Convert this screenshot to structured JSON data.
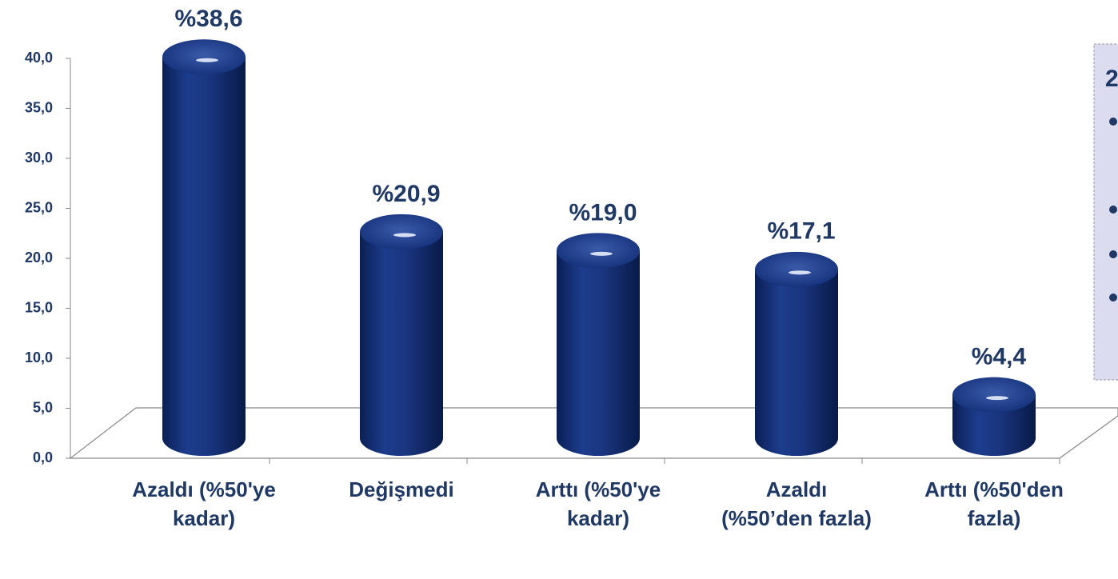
{
  "chart_data": {
    "type": "bar",
    "categories": [
      "Azaldı (%50'ye kadar)",
      "Değişmedi",
      "Arttı (%50'ye kadar)",
      "Azaldı (%50’den fazla)",
      "Arttı (%50'den fazla)"
    ],
    "values": [
      38.6,
      20.9,
      19.0,
      17.1,
      4.4
    ],
    "value_labels": [
      "%38,6",
      "%20,9",
      "%19,0",
      "%17,1",
      "%4,4"
    ],
    "color": "#0f2a6b",
    "ylim": [
      0,
      40
    ],
    "yticks": [
      {
        "value": 0,
        "label": "0,0"
      },
      {
        "value": 5,
        "label": "5,0"
      },
      {
        "value": 10,
        "label": "10,0"
      },
      {
        "value": 15,
        "label": "15,0"
      },
      {
        "value": 20,
        "label": "20,0"
      },
      {
        "value": 25,
        "label": "25,0"
      },
      {
        "value": 30,
        "label": "30,0"
      },
      {
        "value": 35,
        "label": "35,0"
      },
      {
        "value": 40,
        "label": "40,0"
      }
    ],
    "panel_text": "2"
  }
}
